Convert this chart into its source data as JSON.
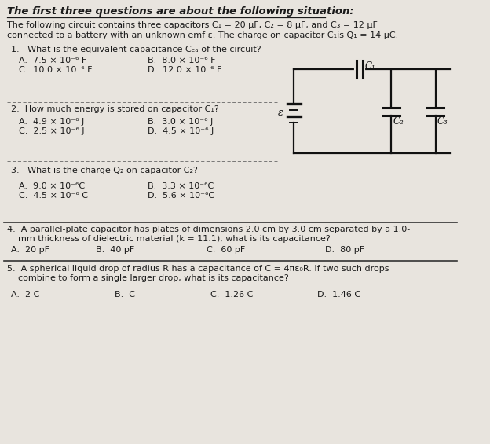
{
  "title": "The first three questions are about the following situation:",
  "bg_color": "#e8e4de",
  "text_color": "#1a1a1a",
  "intro_line1": "The following circuit contains three capacitors C₁ = 20 μF, C₂ = 8 μF, and C₃ = 12 μF",
  "intro_line2": "connected to a battery with an unknown emf ε. The charge on capacitor C₁is Q₁ = 14 μC.",
  "q1": "1.   What is the equivalent capacitance Cₑₐ of the circuit?",
  "q1_A": "A.  7.5 × 10⁻⁶ F",
  "q1_B": "B.  8.0 × 10⁻⁶ F",
  "q1_C": "C.  10.0 × 10⁻⁶ F",
  "q1_D": "D.  12.0 × 10⁻⁶ F",
  "q2": "2.  How much energy is stored on capacitor C₁?",
  "q2_A": "A.  4.9 × 10⁻⁶ J",
  "q2_B": "B.  3.0 × 10⁻⁶ J",
  "q2_C": "C.  2.5 × 10⁻⁶ J",
  "q2_D": "D.  4.5 × 10⁻⁶ J",
  "q3": "3.   What is the charge Q₂ on capacitor C₂?",
  "q3_A": "A.  9.0 × 10⁻⁶C",
  "q3_B": "B.  3.3 × 10⁻⁶C",
  "q3_C": "C.  4.5 × 10⁻⁶ C",
  "q3_D": "D.  5.6 × 10⁻⁶C",
  "q4_line1": "4.  A parallel-plate capacitor has plates of dimensions 2.0 cm by 3.0 cm separated by a 1.0-",
  "q4_line2": "    mm thickness of dielectric material (k = 11.1), what is its capacitance?",
  "q4_A": "A.  20 pF",
  "q4_B": "B.  40 pF",
  "q4_C": "C.  60 pF",
  "q4_D": "D.  80 pF",
  "q5_line1": "5.  A spherical liquid drop of radius R has a capacitance of C = 4πε₀R. If two such drops",
  "q5_line2": "    combine to form a single larger drop, what is its capacitance?",
  "q5_A": "A.  2 C",
  "q5_B": "B.  C",
  "q5_C": "C.  1.26 C",
  "q5_D": "D.  1.46 C",
  "line_color": "#333333",
  "dash_color": "#666666",
  "circuit_color": "#111111"
}
